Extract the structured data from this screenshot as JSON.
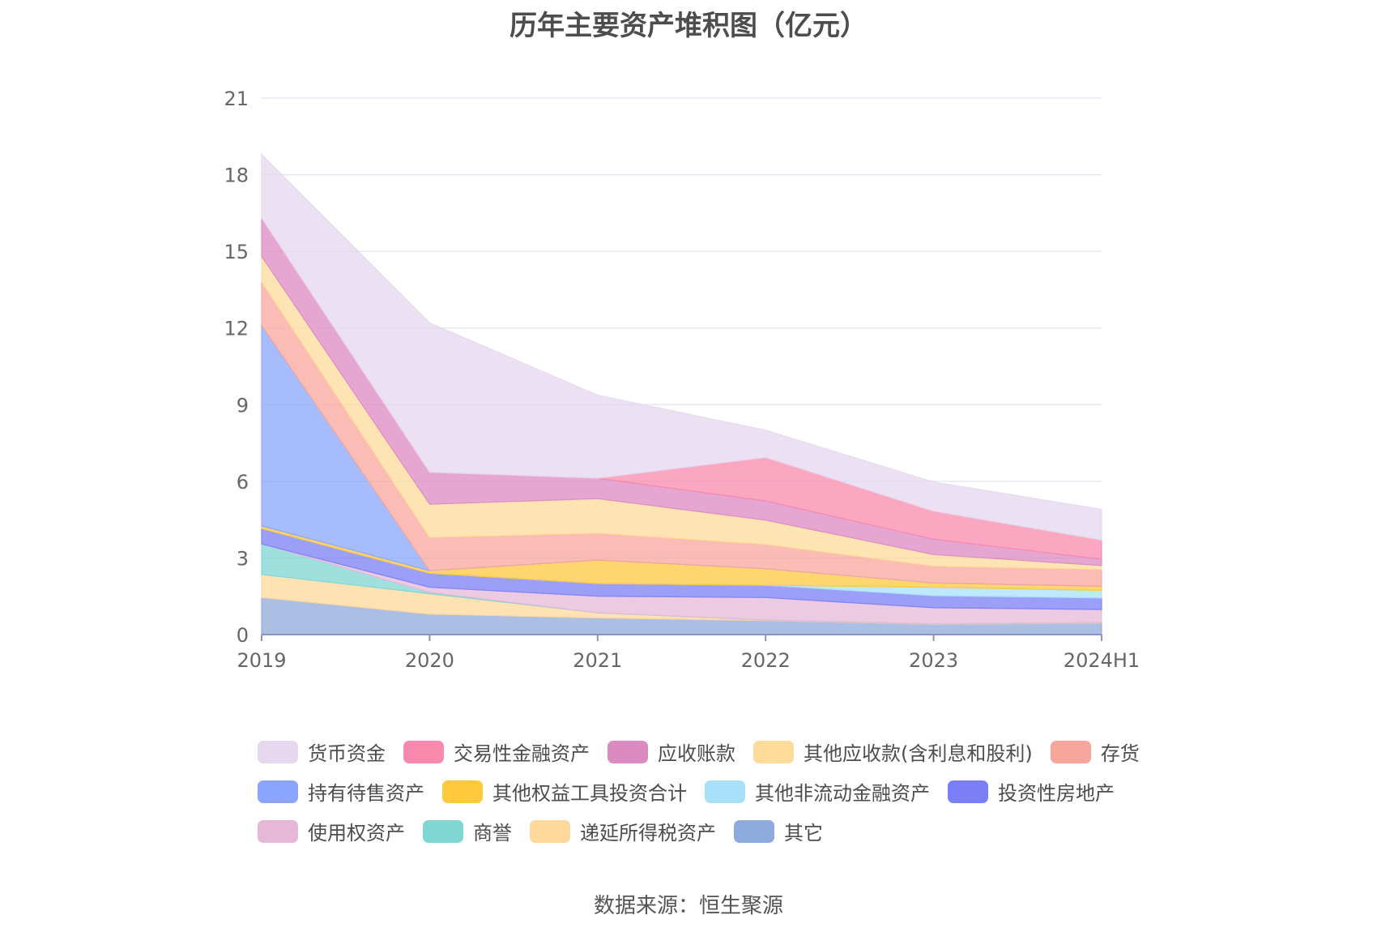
{
  "title": "历年主要资产堆积图（亿元）",
  "source": "数据来源：恒生聚源",
  "chart_data": {
    "type": "area",
    "stacked": true,
    "title": "历年主要资产堆积图（亿元）",
    "categories": [
      "2019",
      "2020",
      "2021",
      "2022",
      "2023",
      "2024H1"
    ],
    "ylim": [
      0,
      21
    ],
    "yticks": [
      0,
      3,
      6,
      9,
      12,
      15,
      18,
      21
    ],
    "grid": true,
    "legend_position": "bottom",
    "series": [
      {
        "name": "其它",
        "color": "#8faadc",
        "values": [
          1.45,
          0.8,
          0.65,
          0.55,
          0.4,
          0.45
        ]
      },
      {
        "name": "递延所得税资产",
        "color": "#ffd89b",
        "values": [
          0.9,
          0.8,
          0.2,
          0.02,
          0.02,
          0.02
        ]
      },
      {
        "name": "商誉",
        "color": "#7fd6d3",
        "values": [
          1.2,
          0.05,
          0.0,
          0.0,
          0.0,
          0.0
        ]
      },
      {
        "name": "使用权资产",
        "color": "#e6b8d8",
        "values": [
          0.0,
          0.2,
          0.65,
          0.88,
          0.63,
          0.51
        ]
      },
      {
        "name": "投资性房地产",
        "color": "#7b7ff5",
        "values": [
          0.6,
          0.55,
          0.5,
          0.48,
          0.47,
          0.45
        ]
      },
      {
        "name": "其他非流动金融资产",
        "color": "#a8e0fa",
        "values": [
          0.0,
          0.0,
          0.0,
          0.0,
          0.33,
          0.3
        ]
      },
      {
        "name": "其他权益工具投资合计",
        "color": "#ffc83d",
        "values": [
          0.1,
          0.1,
          0.92,
          0.65,
          0.17,
          0.16
        ]
      },
      {
        "name": "持有待售资产",
        "color": "#8aa5fb",
        "values": [
          7.85,
          0.0,
          0.0,
          0.0,
          0.0,
          0.0
        ]
      },
      {
        "name": "存货",
        "color": "#f8a59c",
        "values": [
          1.7,
          1.3,
          1.05,
          0.95,
          0.66,
          0.66
        ]
      },
      {
        "name": "其他应收款(含利息和股利)",
        "color": "#ffdb9a",
        "values": [
          1.0,
          1.3,
          1.35,
          0.95,
          0.45,
          0.15
        ]
      },
      {
        "name": "应收账款",
        "color": "#dc8ac2",
        "values": [
          1.5,
          1.25,
          0.8,
          0.75,
          0.6,
          0.25
        ]
      },
      {
        "name": "交易性金融资产",
        "color": "#f98aae",
        "values": [
          0.0,
          0.0,
          0.0,
          1.7,
          1.1,
          0.75
        ]
      },
      {
        "name": "货币资金",
        "color": "#e5d7ee",
        "values": [
          2.5,
          5.85,
          3.25,
          1.07,
          1.14,
          1.2
        ]
      }
    ],
    "legend_rows": [
      [
        "货币资金",
        "交易性金融资产",
        "应收账款",
        "其他应收款(含利息和股利)",
        "存货"
      ],
      [
        "持有待售资产",
        "其他权益工具投资合计",
        "其他非流动金融资产",
        "投资性房地产"
      ],
      [
        "使用权资产",
        "商誉",
        "递延所得税资产",
        "其它"
      ]
    ]
  }
}
